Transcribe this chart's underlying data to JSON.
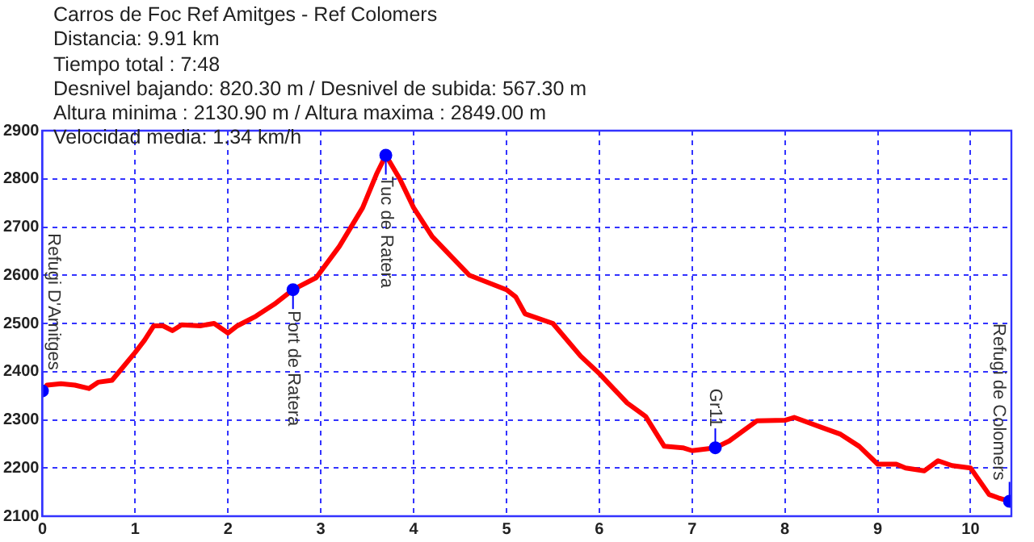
{
  "chart_data": {
    "type": "line",
    "title": "Carros de Foc Ref Amitges - Ref Colomers",
    "annotations": [
      "Distancia: 9.91 km",
      "Tiempo total : 7:48",
      "Desnivel bajando: 820.30 m / Desnivel de subida: 567.30 m",
      "Altura minima : 2130.90 m / Altura maxima : 2849.00 m",
      "Velocidad media: 1.34 km/h",
      {
        "text": "Refugi D'Amitges",
        "x": 0,
        "y": 2360
      },
      {
        "text": "Port de Ratera",
        "x": 2.7,
        "y": 2570
      },
      {
        "text": "Tuc de Ratera",
        "x": 3.7,
        "y": 2849
      },
      {
        "text": "Gr11",
        "x": 7.25,
        "y": 2242
      },
      {
        "text": "Refugi de Colomers",
        "x": 10.42,
        "y": 2131
      }
    ],
    "series": [
      {
        "color": "#ff0000",
        "marker": "none",
        "line_style": "solid",
        "x": [
          0,
          0.05,
          0.2,
          0.35,
          0.5,
          0.6,
          0.75,
          0.85,
          1.0,
          1.1,
          1.2,
          1.3,
          1.4,
          1.5,
          1.7,
          1.85,
          2.0,
          2.1,
          2.3,
          2.5,
          2.7,
          2.95,
          3.2,
          3.45,
          3.6,
          3.7,
          3.85,
          4.0,
          4.2,
          4.4,
          4.6,
          4.8,
          5.0,
          5.1,
          5.2,
          5.5,
          5.8,
          6.0,
          6.3,
          6.5,
          6.7,
          6.9,
          7.0,
          7.25,
          7.4,
          7.7,
          8.0,
          8.1,
          8.4,
          8.6,
          8.8,
          9.0,
          9.2,
          9.3,
          9.5,
          9.65,
          9.8,
          10.0,
          10.2,
          10.3,
          10.42
        ],
        "values": [
          2360,
          2372,
          2375,
          2372,
          2365,
          2378,
          2382,
          2405,
          2440,
          2465,
          2495,
          2495,
          2485,
          2497,
          2495,
          2500,
          2480,
          2495,
          2515,
          2540,
          2570,
          2595,
          2660,
          2740,
          2810,
          2849,
          2800,
          2740,
          2680,
          2640,
          2600,
          2585,
          2570,
          2555,
          2520,
          2500,
          2432,
          2396,
          2335,
          2307,
          2245,
          2242,
          2236,
          2242,
          2256,
          2298,
          2299,
          2305,
          2284,
          2270,
          2245,
          2208,
          2208,
          2200,
          2194,
          2215,
          2205,
          2200,
          2145,
          2138,
          2131
        ]
      },
      {
        "type": "scatter",
        "color": "#0000ff",
        "marker": "circle",
        "x": [
          0,
          2.7,
          3.7,
          7.25,
          10.42
        ],
        "values": [
          2360,
          2570,
          2849,
          2242,
          2131
        ]
      }
    ],
    "xlim": [
      0,
      10.44
    ],
    "xticks": [
      0,
      1,
      2,
      3,
      4,
      5,
      6,
      7,
      8,
      9,
      10
    ],
    "ylim": [
      2100,
      2900
    ],
    "yticks": [
      2100,
      2200,
      2300,
      2400,
      2500,
      2600,
      2700,
      2800,
      2900
    ],
    "grid": true,
    "legend": false
  }
}
